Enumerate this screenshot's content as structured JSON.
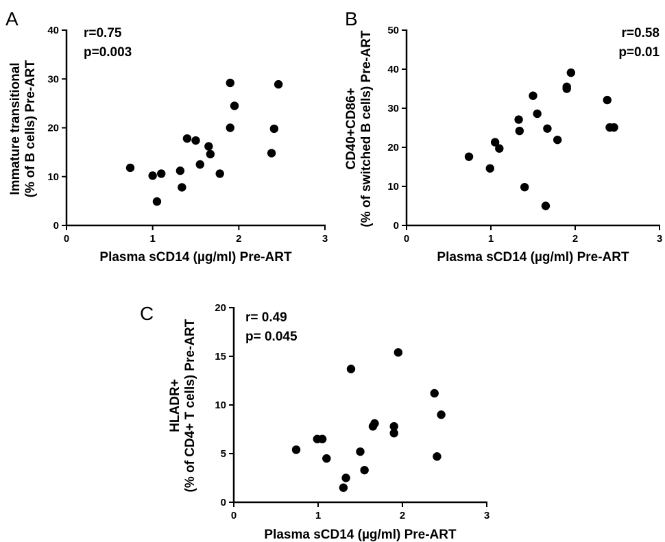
{
  "chart_data": [
    {
      "panel": "A",
      "type": "scatter",
      "xlabel": "Plasma sCD14 (µg/ml) Pre-ART",
      "ylabel": [
        "Immature transitional",
        "(% of B cells) Pre-ART"
      ],
      "xlim": [
        0,
        3
      ],
      "ylim": [
        0,
        40
      ],
      "xticks": [
        0,
        1,
        2,
        3
      ],
      "yticks": [
        0,
        10,
        20,
        30,
        40
      ],
      "stats": [
        "r=0.75",
        "p=0.003"
      ],
      "stats_position": "top-left",
      "points": [
        {
          "x": 0.74,
          "y": 11.8
        },
        {
          "x": 1.0,
          "y": 10.2
        },
        {
          "x": 1.05,
          "y": 4.9
        },
        {
          "x": 1.1,
          "y": 10.6
        },
        {
          "x": 1.32,
          "y": 11.2
        },
        {
          "x": 1.34,
          "y": 7.8
        },
        {
          "x": 1.4,
          "y": 17.8
        },
        {
          "x": 1.5,
          "y": 17.4
        },
        {
          "x": 1.55,
          "y": 12.5
        },
        {
          "x": 1.65,
          "y": 16.2
        },
        {
          "x": 1.67,
          "y": 14.6
        },
        {
          "x": 1.78,
          "y": 10.6
        },
        {
          "x": 1.9,
          "y": 29.2
        },
        {
          "x": 1.9,
          "y": 20.0
        },
        {
          "x": 1.95,
          "y": 24.5
        },
        {
          "x": 2.38,
          "y": 14.8
        },
        {
          "x": 2.41,
          "y": 19.8
        },
        {
          "x": 2.46,
          "y": 28.9
        }
      ]
    },
    {
      "panel": "B",
      "type": "scatter",
      "xlabel": "Plasma sCD14 (µg/ml) Pre-ART",
      "ylabel": [
        "CD40+CD86+",
        "(% of switched B cells) Pre-ART"
      ],
      "xlim": [
        0,
        3
      ],
      "ylim": [
        0,
        50
      ],
      "xticks": [
        0,
        1,
        2,
        3
      ],
      "yticks": [
        0,
        10,
        20,
        30,
        40,
        50
      ],
      "stats": [
        "r=0.58",
        "p=0.01"
      ],
      "stats_position": "top-right",
      "points": [
        {
          "x": 0.74,
          "y": 17.6
        },
        {
          "x": 0.99,
          "y": 14.6
        },
        {
          "x": 1.05,
          "y": 21.3
        },
        {
          "x": 1.1,
          "y": 19.7
        },
        {
          "x": 1.33,
          "y": 27.1
        },
        {
          "x": 1.34,
          "y": 24.2
        },
        {
          "x": 1.4,
          "y": 9.8
        },
        {
          "x": 1.5,
          "y": 33.2
        },
        {
          "x": 1.55,
          "y": 28.6
        },
        {
          "x": 1.65,
          "y": 5.0
        },
        {
          "x": 1.67,
          "y": 24.8
        },
        {
          "x": 1.79,
          "y": 21.9
        },
        {
          "x": 1.9,
          "y": 35.0
        },
        {
          "x": 1.9,
          "y": 35.5
        },
        {
          "x": 1.95,
          "y": 39.1
        },
        {
          "x": 2.38,
          "y": 32.1
        },
        {
          "x": 2.41,
          "y": 25.1
        },
        {
          "x": 2.46,
          "y": 25.1
        }
      ]
    },
    {
      "panel": "C",
      "type": "scatter",
      "xlabel": "Plasma sCD14 (µg/ml) Pre-ART",
      "ylabel": [
        "HLADR+",
        "(% of CD4+ T cells) Pre-ART"
      ],
      "xlim": [
        0,
        3
      ],
      "ylim": [
        0,
        20
      ],
      "xticks": [
        0,
        1,
        2,
        3
      ],
      "yticks": [
        0,
        5,
        10,
        15,
        20
      ],
      "stats": [
        "r= 0.49",
        "p= 0.045"
      ],
      "stats_position": "top-left",
      "points": [
        {
          "x": 0.74,
          "y": 5.4
        },
        {
          "x": 0.99,
          "y": 6.5
        },
        {
          "x": 1.05,
          "y": 6.5
        },
        {
          "x": 1.1,
          "y": 4.5
        },
        {
          "x": 1.3,
          "y": 1.5
        },
        {
          "x": 1.33,
          "y": 2.5
        },
        {
          "x": 1.39,
          "y": 13.7
        },
        {
          "x": 1.5,
          "y": 5.2
        },
        {
          "x": 1.55,
          "y": 3.3
        },
        {
          "x": 1.65,
          "y": 7.8
        },
        {
          "x": 1.67,
          "y": 8.1
        },
        {
          "x": 1.9,
          "y": 7.8
        },
        {
          "x": 1.9,
          "y": 7.1
        },
        {
          "x": 1.95,
          "y": 15.4
        },
        {
          "x": 2.38,
          "y": 11.2
        },
        {
          "x": 2.41,
          "y": 4.7
        },
        {
          "x": 2.46,
          "y": 9.0
        }
      ]
    }
  ]
}
